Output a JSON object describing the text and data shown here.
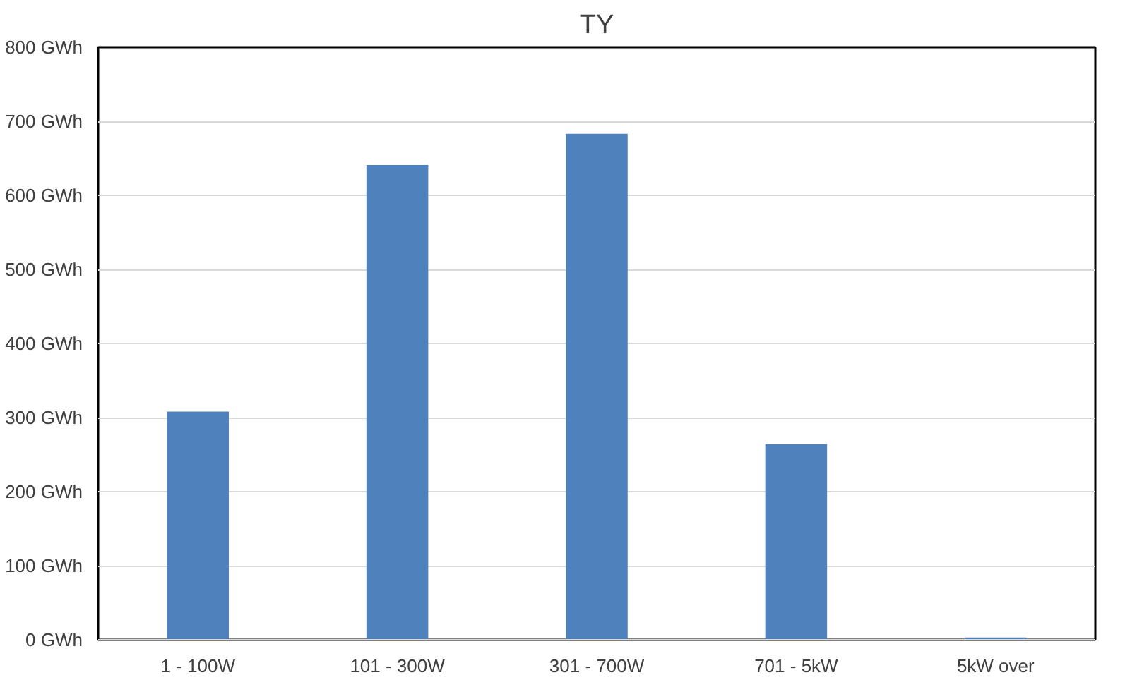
{
  "chart_data": {
    "type": "bar",
    "title": "TY",
    "categories": [
      "1 - 100W",
      "101 - 300W",
      "301 - 700W",
      "701 - 5kW",
      "5kW over"
    ],
    "values": [
      308,
      641,
      683,
      264,
      3
    ],
    "color": "#4f81bd",
    "ylim": [
      0,
      800
    ],
    "yticks": [
      {
        "value": 0,
        "label": "0 GWh"
      },
      {
        "value": 100,
        "label": "100 GWh"
      },
      {
        "value": 200,
        "label": "200 GWh"
      },
      {
        "value": 300,
        "label": "300 GWh"
      },
      {
        "value": 400,
        "label": "400 GWh"
      },
      {
        "value": 500,
        "label": "500 GWh"
      },
      {
        "value": 600,
        "label": "600 GWh"
      },
      {
        "value": 700,
        "label": "700 GWh"
      },
      {
        "value": 800,
        "label": "800 GWh"
      }
    ],
    "grid": "y"
  }
}
